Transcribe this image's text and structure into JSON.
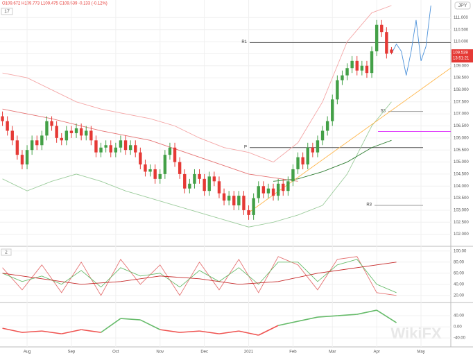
{
  "chart_data": {
    "type": "candlestick",
    "legend_text": "O109.672 H109.773 L109.475 C109.539 -0.133 (-0.12%)",
    "currency": "JPY",
    "main_label": "17",
    "time_label": "13:51:21",
    "watermark": "WikiFX",
    "up_color": "#43a047",
    "down_color": "#e53935",
    "categories": [
      null,
      null,
      null,
      null,
      null,
      "Aug",
      null,
      null,
      null,
      null,
      null,
      null,
      null,
      null,
      "Sep",
      null,
      null,
      null,
      null,
      null,
      null,
      null,
      null,
      "Oct",
      null,
      null,
      null,
      null,
      null,
      null,
      null,
      null,
      "Nov",
      null,
      null,
      null,
      null,
      null,
      null,
      null,
      null,
      "Dec",
      null,
      null,
      null,
      null,
      null,
      null,
      null,
      null,
      "2021",
      null,
      null,
      null,
      null,
      null,
      null,
      null,
      null,
      "Feb",
      null,
      null,
      null,
      null,
      null,
      null,
      null,
      "Mar",
      null,
      null,
      null,
      null,
      null,
      null,
      null,
      null,
      "Apr",
      null,
      null,
      null,
      null,
      null,
      null,
      null,
      null,
      "May",
      null,
      null,
      null,
      null,
      null,
      null,
      null,
      null,
      null,
      null
    ],
    "open": [
      106.9,
      106.7,
      106.3,
      105.9,
      105.3,
      104.9,
      105.5,
      105.9,
      105.7,
      106.1,
      106.7,
      106.5,
      106.0,
      105.9,
      106.3,
      106.2,
      106.4,
      106.1,
      106.3,
      105.9,
      105.4,
      105.6,
      105.7,
      105.4,
      105.6,
      105.9,
      105.5,
      105.7,
      105.4,
      104.9,
      104.6,
      104.7,
      104.3,
      104.5,
      105.3,
      105.6,
      105.0,
      104.5,
      103.9,
      104.1,
      104.5,
      104.3,
      103.8,
      104.4,
      104.2,
      103.7,
      103.4,
      103.6,
      103.2,
      103.6,
      103.0,
      102.8,
      103.5,
      104.0,
      103.7,
      103.9,
      103.6,
      104.1,
      103.8,
      104.2,
      104.7,
      105.2,
      104.9,
      105.6,
      105.4,
      105.9,
      106.3,
      106.7,
      107.6,
      108.4,
      108.6,
      108.9,
      109.2,
      108.8,
      109.0,
      108.7,
      109.6,
      110.7,
      110.4,
      109.672,
      null,
      null,
      null,
      null,
      null,
      null,
      null,
      null,
      null,
      null,
      null,
      null,
      null,
      null,
      null,
      null
    ],
    "high": [
      107.1,
      106.9,
      106.5,
      106.1,
      105.5,
      105.7,
      106.1,
      106.1,
      106.3,
      106.9,
      106.9,
      106.7,
      106.2,
      106.5,
      106.5,
      106.6,
      106.6,
      106.5,
      106.5,
      106.1,
      105.8,
      105.9,
      105.9,
      105.8,
      106.1,
      106.1,
      105.9,
      105.9,
      105.6,
      105.1,
      104.9,
      104.9,
      104.7,
      105.5,
      105.8,
      105.8,
      105.2,
      104.7,
      104.3,
      104.7,
      104.7,
      104.5,
      104.6,
      104.6,
      104.4,
      103.9,
      103.8,
      103.8,
      103.8,
      103.8,
      103.2,
      103.7,
      104.2,
      104.2,
      104.1,
      104.1,
      104.3,
      104.3,
      104.4,
      104.9,
      105.4,
      105.4,
      105.8,
      105.8,
      106.1,
      106.5,
      106.9,
      107.8,
      108.6,
      108.8,
      109.1,
      109.4,
      109.4,
      109.2,
      109.2,
      109.8,
      110.9,
      110.9,
      110.6,
      109.773,
      null,
      null,
      null,
      null,
      null,
      null,
      null,
      null,
      null,
      null,
      null,
      null,
      null,
      null,
      null,
      null
    ],
    "low": [
      106.5,
      106.1,
      105.7,
      105.1,
      104.7,
      104.7,
      105.3,
      105.5,
      105.5,
      105.9,
      106.3,
      105.8,
      105.7,
      105.7,
      106.0,
      106.0,
      105.9,
      105.9,
      105.7,
      105.2,
      105.2,
      105.4,
      105.2,
      105.2,
      105.4,
      105.3,
      105.3,
      105.2,
      104.7,
      104.4,
      104.4,
      104.1,
      104.1,
      104.3,
      105.1,
      104.8,
      104.3,
      103.7,
      103.7,
      103.9,
      104.1,
      103.6,
      103.6,
      104.0,
      103.5,
      103.2,
      103.2,
      103.0,
      103.0,
      102.8,
      102.6,
      102.6,
      103.3,
      103.5,
      103.5,
      103.4,
      103.4,
      103.6,
      103.6,
      104.0,
      104.5,
      104.7,
      104.7,
      105.2,
      105.2,
      105.7,
      106.1,
      106.5,
      107.4,
      108.2,
      108.4,
      108.7,
      108.6,
      108.6,
      108.5,
      108.5,
      109.4,
      110.2,
      109.3,
      109.475,
      null,
      null,
      null,
      null,
      null,
      null,
      null,
      null,
      null,
      null,
      null,
      null,
      null,
      null,
      null,
      null
    ],
    "close": [
      106.7,
      106.3,
      105.9,
      105.3,
      104.9,
      105.5,
      105.9,
      105.7,
      106.1,
      106.7,
      106.5,
      106.0,
      105.9,
      106.3,
      106.2,
      106.4,
      106.1,
      106.3,
      105.9,
      105.4,
      105.6,
      105.7,
      105.4,
      105.6,
      105.9,
      105.5,
      105.7,
      105.4,
      104.9,
      104.6,
      104.7,
      104.3,
      104.5,
      105.3,
      105.6,
      105.0,
      104.5,
      103.9,
      104.1,
      104.5,
      104.3,
      103.8,
      104.4,
      104.2,
      103.7,
      103.4,
      103.6,
      103.2,
      103.6,
      103.0,
      102.8,
      103.5,
      104.0,
      103.7,
      103.9,
      103.6,
      104.1,
      103.8,
      104.2,
      104.7,
      105.2,
      104.9,
      105.6,
      105.4,
      105.9,
      106.3,
      106.7,
      107.6,
      108.4,
      108.6,
      108.9,
      109.2,
      108.8,
      109.0,
      108.7,
      109.6,
      110.7,
      110.4,
      109.5,
      109.539,
      null,
      null,
      null,
      null,
      null,
      null,
      null,
      null,
      null,
      null,
      null,
      null,
      null,
      null,
      null,
      null
    ],
    "ylim": [
      101.5,
      111.5
    ],
    "yticks": [
      {
        "value": 102,
        "label": "102.000"
      },
      {
        "value": 102.5,
        "label": "102.500"
      },
      {
        "value": 103,
        "label": "103.000"
      },
      {
        "value": 103.5,
        "label": "103.500"
      },
      {
        "value": 104,
        "label": "104.000"
      },
      {
        "value": 104.5,
        "label": "104.500"
      },
      {
        "value": 105,
        "label": "105.000"
      },
      {
        "value": 105.5,
        "label": "105.500"
      },
      {
        "value": 106,
        "label": "106.000"
      },
      {
        "value": 106.5,
        "label": "106.500"
      },
      {
        "value": 107,
        "label": "107.000"
      },
      {
        "value": 107.5,
        "label": "107.500"
      },
      {
        "value": 108,
        "label": "108.000"
      },
      {
        "value": 108.5,
        "label": "108.500"
      },
      {
        "value": 109,
        "label": "109.000"
      },
      {
        "value": 109.5,
        "label": "109.500"
      },
      {
        "value": 110,
        "label": "110.000"
      },
      {
        "value": 110.5,
        "label": "110.500"
      },
      {
        "value": 111,
        "label": "111.000"
      }
    ],
    "overlays": [
      {
        "color": "#f4a6a6",
        "x": [
          0,
          5,
          10,
          15,
          20,
          25,
          30,
          35,
          40,
          45,
          50,
          55,
          60,
          65,
          70,
          75,
          79
        ],
        "values": [
          108.7,
          108.5,
          108.0,
          107.5,
          107.2,
          107.0,
          106.8,
          106.5,
          106.0,
          105.6,
          105.4,
          105.0,
          105.8,
          107.5,
          110.0,
          111.2,
          111.5
        ]
      },
      {
        "color": "#9ccc9c",
        "x": [
          0,
          5,
          10,
          15,
          20,
          25,
          30,
          35,
          40,
          45,
          50,
          55,
          60,
          65,
          70,
          75,
          79
        ],
        "values": [
          104.3,
          103.8,
          104.2,
          104.5,
          104.2,
          103.8,
          103.5,
          103.2,
          102.9,
          102.6,
          102.3,
          102.5,
          102.8,
          103.2,
          104.5,
          106.5,
          107.5
        ]
      },
      {
        "color": "#e57373",
        "x": [
          0,
          10,
          20,
          30,
          40,
          50,
          60
        ],
        "values": [
          107.2,
          106.8,
          106.3,
          105.9,
          105.2,
          104.5,
          104.2
        ]
      },
      {
        "color": "#2e7d32",
        "x": [
          55,
          60,
          65,
          70,
          75,
          79
        ],
        "values": [
          104.2,
          104.3,
          104.6,
          105.0,
          105.6,
          105.9
        ]
      },
      {
        "color": "#ffb74d",
        "x": [
          50,
          91
        ],
        "values": [
          102.9,
          108.9
        ]
      },
      {
        "color": "#4a90d9",
        "x": [
          79,
          80,
          81,
          82,
          83,
          84,
          85,
          86,
          87
        ],
        "values": [
          109.5,
          109.9,
          109.6,
          108.6,
          109.6,
          110.9,
          109.2,
          109.8,
          111.5
        ]
      }
    ],
    "levels": [
      {
        "label": "R1",
        "value": 109.96,
        "color": "#555555"
      },
      {
        "label": "P",
        "value": 105.6,
        "color": "#555555"
      },
      {
        "label": "S3",
        "value": 107.1,
        "color": "#999999"
      },
      {
        "label": "R3",
        "value": 103.2,
        "color": "#999999"
      },
      {
        "value": 106.27,
        "color": "#e040fb"
      }
    ],
    "panels": [
      {
        "label": "2",
        "ylim": [
          11,
          106
        ],
        "yticks": [
          {
            "value": 20,
            "label": "20.00"
          },
          {
            "value": 40,
            "label": "40.00"
          },
          {
            "value": 60,
            "label": "60.00"
          },
          {
            "value": 80,
            "label": "80.00"
          },
          {
            "value": 100,
            "label": "100.00"
          }
        ],
        "series": [
          {
            "color": "#e57373",
            "x": [
              0,
              4,
              8,
              12,
              16,
              20,
              24,
              28,
              32,
              36,
              40,
              44,
              48,
              52,
              56,
              60,
              64,
              68,
              72,
              76,
              80
            ],
            "values": [
              70,
              30,
              75,
              25,
              80,
              20,
              85,
              40,
              75,
              20,
              80,
              30,
              85,
              25,
              90,
              75,
              30,
              85,
              90,
              25,
              20
            ]
          },
          {
            "color": "#66bb6a",
            "x": [
              0,
              4,
              8,
              12,
              16,
              20,
              24,
              28,
              32,
              36,
              40,
              44,
              48,
              52,
              56,
              60,
              64,
              68,
              72,
              76,
              80
            ],
            "values": [
              60,
              45,
              55,
              40,
              65,
              35,
              70,
              55,
              60,
              35,
              65,
              45,
              70,
              40,
              80,
              80,
              45,
              75,
              85,
              40,
              25
            ]
          },
          {
            "color": "#c62828",
            "x": [
              0,
              8,
              16,
              24,
              32,
              40,
              48,
              56,
              64,
              72,
              80
            ],
            "values": [
              60,
              50,
              40,
              45,
              55,
              50,
              40,
              45,
              60,
              70,
              80
            ]
          }
        ]
      },
      {
        "ylim": [
          -72,
          85
        ],
        "yticks": [
          {
            "value": -40,
            "label": "-40.00"
          },
          {
            "value": 0,
            "label": "0.00"
          },
          {
            "value": 40,
            "label": "40.00"
          }
        ],
        "series": [
          {
            "color": "#66bb6a",
            "negative_color": "#ef5350",
            "x": [
              0,
              4,
              8,
              12,
              16,
              20,
              24,
              28,
              32,
              36,
              40,
              44,
              48,
              52,
              56,
              60,
              64,
              68,
              72,
              76,
              80
            ],
            "values": [
              -5,
              -20,
              -15,
              -25,
              -10,
              -20,
              30,
              25,
              -10,
              -20,
              -15,
              -25,
              -15,
              -30,
              5,
              20,
              35,
              40,
              45,
              60,
              15
            ]
          }
        ]
      }
    ]
  }
}
